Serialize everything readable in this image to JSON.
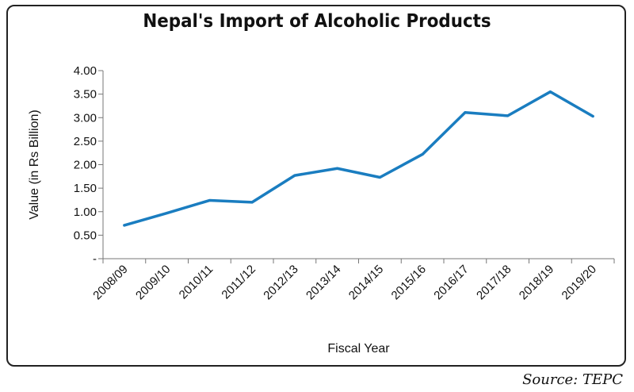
{
  "chart_data": {
    "type": "line",
    "title": "Nepal's Import of Alcoholic Products",
    "xlabel": "Fiscal Year",
    "ylabel": "Value (in Rs Billion)",
    "categories": [
      "2008/09",
      "2009/10",
      "2010/11",
      "2011/12",
      "2012/13",
      "2013/14",
      "2014/15",
      "2015/16",
      "2016/17",
      "2017/18",
      "2018/19",
      "2019/20"
    ],
    "series": [
      {
        "values": [
          0.71,
          0.97,
          1.24,
          1.2,
          1.77,
          1.92,
          1.73,
          2.22,
          3.11,
          3.04,
          3.55,
          3.03
        ],
        "color": "#1a7dc0"
      }
    ],
    "ylim": [
      0,
      4
    ],
    "yticks": [
      "-",
      "0.50",
      "1.00",
      "1.50",
      "2.00",
      "2.50",
      "3.00",
      "3.50",
      "4.00"
    ],
    "grid": false,
    "source": "Source: TEPC"
  }
}
